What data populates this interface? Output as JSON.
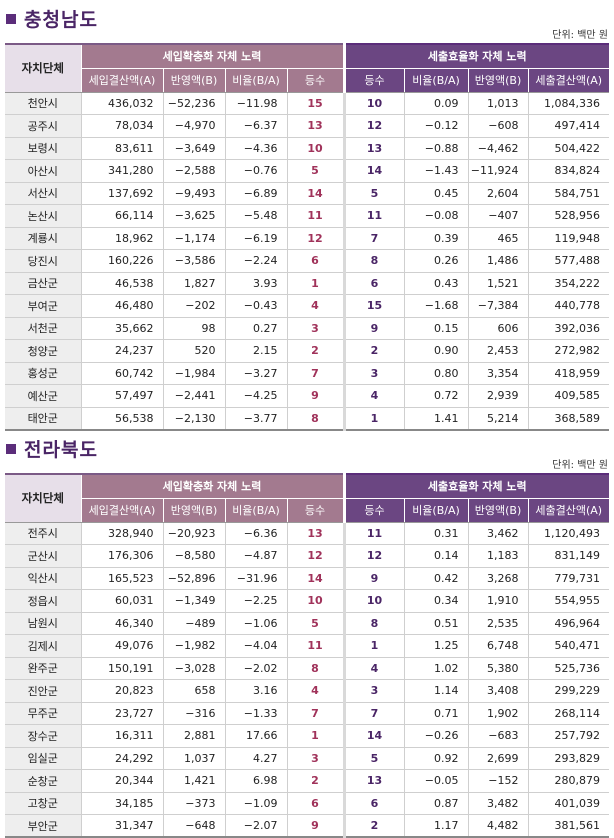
{
  "columns": {
    "region": "자치단체",
    "group_revenue": "세입확충화 자체 노력",
    "group_expense": "세출효율화 자체 노력",
    "revenue_cols": [
      "세입결산액(A)",
      "반영액(B)",
      "비율(B/A)",
      "등수"
    ],
    "expense_cols": [
      "등수",
      "비율(B/A)",
      "반영액(B)",
      "세출결산액(A)"
    ]
  },
  "sections": [
    {
      "title": "충청남도",
      "unit": "단위: 백만 원",
      "rows": [
        [
          "천안시",
          "436,032",
          "−52,236",
          "−11.98",
          "15",
          "10",
          "0.09",
          "1,013",
          "1,084,336"
        ],
        [
          "공주시",
          "78,034",
          "−4,970",
          "−6.37",
          "13",
          "12",
          "−0.12",
          "−608",
          "497,414"
        ],
        [
          "보령시",
          "83,611",
          "−3,649",
          "−4.36",
          "10",
          "13",
          "−0.88",
          "−4,462",
          "504,422"
        ],
        [
          "아산시",
          "341,280",
          "−2,588",
          "−0.76",
          "5",
          "14",
          "−1.43",
          "−11,924",
          "834,824"
        ],
        [
          "서산시",
          "137,692",
          "−9,493",
          "−6.89",
          "14",
          "5",
          "0.45",
          "2,604",
          "584,751"
        ],
        [
          "논산시",
          "66,114",
          "−3,625",
          "−5.48",
          "11",
          "11",
          "−0.08",
          "−407",
          "528,956"
        ],
        [
          "계룡시",
          "18,962",
          "−1,174",
          "−6.19",
          "12",
          "7",
          "0.39",
          "465",
          "119,948"
        ],
        [
          "당진시",
          "160,226",
          "−3,586",
          "−2.24",
          "6",
          "8",
          "0.26",
          "1,486",
          "577,488"
        ],
        [
          "금산군",
          "46,538",
          "1,827",
          "3.93",
          "1",
          "6",
          "0.43",
          "1,521",
          "354,222"
        ],
        [
          "부여군",
          "46,480",
          "−202",
          "−0.43",
          "4",
          "15",
          "−1.68",
          "−7,384",
          "440,778"
        ],
        [
          "서천군",
          "35,662",
          "98",
          "0.27",
          "3",
          "9",
          "0.15",
          "606",
          "392,036"
        ],
        [
          "청양군",
          "24,237",
          "520",
          "2.15",
          "2",
          "2",
          "0.90",
          "2,453",
          "272,982"
        ],
        [
          "홍성군",
          "60,742",
          "−1,984",
          "−3.27",
          "7",
          "3",
          "0.80",
          "3,354",
          "418,959"
        ],
        [
          "예산군",
          "57,497",
          "−2,441",
          "−4.25",
          "9",
          "4",
          "0.72",
          "2,939",
          "409,585"
        ],
        [
          "태안군",
          "56,538",
          "−2,130",
          "−3.77",
          "8",
          "1",
          "1.41",
          "5,214",
          "368,589"
        ]
      ]
    },
    {
      "title": "전라북도",
      "unit": "단위: 백만 원",
      "rows": [
        [
          "전주시",
          "328,940",
          "−20,923",
          "−6.36",
          "13",
          "11",
          "0.31",
          "3,462",
          "1,120,493"
        ],
        [
          "군산시",
          "176,306",
          "−8,580",
          "−4.87",
          "12",
          "12",
          "0.14",
          "1,183",
          "831,149"
        ],
        [
          "익산시",
          "165,523",
          "−52,896",
          "−31.96",
          "14",
          "9",
          "0.42",
          "3,268",
          "779,731"
        ],
        [
          "정읍시",
          "60,031",
          "−1,349",
          "−2.25",
          "10",
          "10",
          "0.34",
          "1,910",
          "554,955"
        ],
        [
          "남원시",
          "46,340",
          "−489",
          "−1.06",
          "5",
          "8",
          "0.51",
          "2,535",
          "496,964"
        ],
        [
          "김제시",
          "49,076",
          "−1,982",
          "−4.04",
          "11",
          "1",
          "1.25",
          "6,748",
          "540,471"
        ],
        [
          "완주군",
          "150,191",
          "−3,028",
          "−2.02",
          "8",
          "4",
          "1.02",
          "5,380",
          "525,736"
        ],
        [
          "진안군",
          "20,823",
          "658",
          "3.16",
          "4",
          "3",
          "1.14",
          "3,408",
          "299,229"
        ],
        [
          "무주군",
          "23,727",
          "−316",
          "−1.33",
          "7",
          "7",
          "0.71",
          "1,902",
          "268,114"
        ],
        [
          "장수군",
          "16,311",
          "2,881",
          "17.66",
          "1",
          "14",
          "−0.26",
          "−683",
          "257,792"
        ],
        [
          "임실군",
          "24,292",
          "1,037",
          "4.27",
          "3",
          "5",
          "0.92",
          "2,699",
          "293,829"
        ],
        [
          "순창군",
          "20,344",
          "1,421",
          "6.98",
          "2",
          "13",
          "−0.05",
          "−152",
          "280,879"
        ],
        [
          "고창군",
          "34,185",
          "−373",
          "−1.09",
          "6",
          "6",
          "0.87",
          "3,482",
          "401,039"
        ],
        [
          "부안군",
          "31,347",
          "−648",
          "−2.07",
          "9",
          "2",
          "1.17",
          "4,482",
          "381,561"
        ]
      ]
    }
  ]
}
